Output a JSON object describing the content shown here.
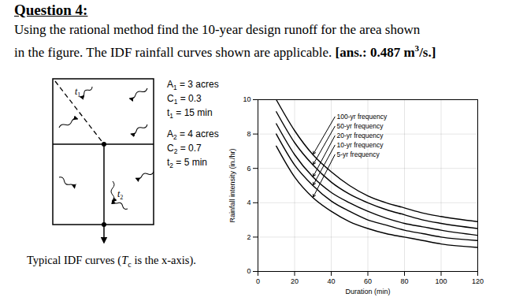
{
  "document": {
    "heading": "Question 4:",
    "question_lines": [
      "Using the rational method find the 10-year design runoff for the area shown",
      "in the figure. The IDF rainfall curves shown are applicable."
    ],
    "answer": {
      "before": "[ans.: 0.487 m",
      "superscript": "3",
      "after": "/s.]"
    },
    "diagram": {
      "area_labels": [
        {
          "symbol": "t",
          "sub": "1"
        },
        {
          "symbol": "t",
          "sub": "2"
        }
      ],
      "legend": [
        {
          "symbol": "A",
          "sub": "1",
          "text": "= 3 acres"
        },
        {
          "symbol": "C",
          "sub": "1",
          "text": "= 0.3"
        },
        {
          "symbol": "t",
          "sub": "1",
          "text": "= 15 min"
        },
        {
          "symbol": "A",
          "sub": "2",
          "text": "= 4 acres"
        },
        {
          "symbol": "C",
          "sub": "2",
          "text": "= 0.7"
        },
        {
          "symbol": "t",
          "sub": "2",
          "text": "= 5 min"
        }
      ]
    },
    "caption": {
      "before": "Typical IDF curves (",
      "symbol": "T",
      "sub": "c",
      "after": " is the x-axis)."
    }
  },
  "chart_data": {
    "type": "line",
    "x_label": "Duration (min)",
    "y_label": "Rainfall intensity (in./hr)",
    "x": [
      10,
      20,
      30,
      40,
      50,
      60,
      70,
      80,
      90,
      100,
      120
    ],
    "series": [
      {
        "name": "100-yr frequency",
        "color": "#000000",
        "values": [
          10,
          8.2,
          6.8,
          5.8,
          5.0,
          4.4,
          4.0,
          3.7,
          3.4,
          3.2,
          2.9
        ]
      },
      {
        "name": "50-yr frequency",
        "color": "#000000",
        "values": [
          9.3,
          7.5,
          6.2,
          5.2,
          4.5,
          4.0,
          3.6,
          3.3,
          3.0,
          2.8,
          2.5
        ]
      },
      {
        "name": "20-yr frequency",
        "color": "#000000",
        "values": [
          8.6,
          6.8,
          5.5,
          4.6,
          4.0,
          3.5,
          3.1,
          2.8,
          2.6,
          2.4,
          2.1
        ]
      },
      {
        "name": "10-yr frequency",
        "color": "#000000",
        "values": [
          8.0,
          6.2,
          5.0,
          4.1,
          3.5,
          3.0,
          2.7,
          2.4,
          2.2,
          2.0,
          1.8
        ]
      },
      {
        "name": "5-yr frequency",
        "color": "#000000",
        "values": [
          7.3,
          5.5,
          4.3,
          3.5,
          2.9,
          2.5,
          2.2,
          2.0,
          1.8,
          1.6,
          1.4
        ]
      }
    ],
    "xlim": [
      0,
      120
    ],
    "xticks": [
      0,
      20,
      40,
      60,
      80,
      100,
      120
    ],
    "ylim": [
      0,
      10
    ],
    "yticks": [
      0,
      2,
      4,
      6,
      8,
      10
    ],
    "grid": true
  }
}
